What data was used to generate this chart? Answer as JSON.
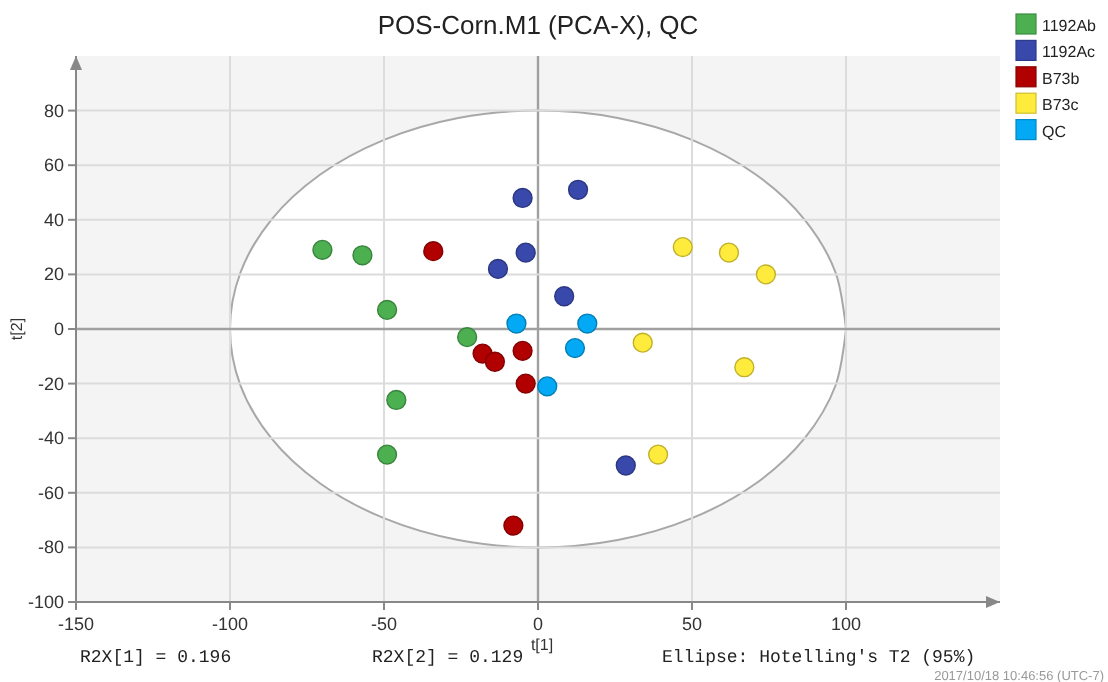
{
  "chart_data": {
    "type": "scatter",
    "title": "POS-Corn.M1 (PCA-X), QC",
    "xlabel": "t[1]",
    "ylabel": "t[2]",
    "xlim": [
      -150,
      150
    ],
    "ylim": [
      -100,
      100
    ],
    "xticks": [
      -150,
      -100,
      -50,
      0,
      50,
      100
    ],
    "yticks": [
      -100,
      -80,
      -60,
      -40,
      -20,
      0,
      20,
      40,
      60,
      80
    ],
    "grid": true,
    "legend": "top right",
    "marker": "circle",
    "annotations": [
      "R2X[1] = 0.196",
      "R2X[2] = 0.129",
      "Ellipse: Hotelling's T2 (95%)",
      "2017/10/18 10:46:56 (UTC-7)"
    ],
    "series": [
      {
        "type": "area",
        "color": "#a8a8a8",
        "marker": "none",
        "x": [
          100,
          96.6,
          86.6,
          70.7,
          50,
          25.9,
          0,
          -25.9,
          -50,
          -70.7,
          -86.6,
          -96.6,
          -100,
          -96.6,
          -86.6,
          -70.7,
          -50,
          -25.9,
          0,
          25.9,
          50,
          70.7,
          86.6,
          96.6,
          100
        ],
        "values": [
          0,
          20.7,
          40,
          56.6,
          69.3,
          77.3,
          80,
          77.3,
          69.3,
          56.6,
          40,
          20.7,
          0,
          -20.7,
          -40,
          -56.6,
          -69.3,
          -77.3,
          -80,
          -77.3,
          -69.3,
          -56.6,
          -40,
          -20.7,
          0
        ]
      },
      {
        "name": "1192Ab",
        "color": "#4caf50",
        "x": [
          -70,
          -57,
          -49,
          -23,
          -46,
          -49
        ],
        "values": [
          29,
          27,
          7,
          -3,
          -26,
          -46
        ]
      },
      {
        "name": "1192Ac",
        "color": "#3949ab",
        "x": [
          -5,
          -4,
          -13,
          13,
          8.5,
          28.5
        ],
        "values": [
          48,
          28,
          22,
          51,
          12,
          -50
        ]
      },
      {
        "name": "B73b",
        "color": "#b00000",
        "x": [
          -34,
          -18,
          -14,
          -5,
          -4,
          -8
        ],
        "values": [
          28.5,
          -9,
          -12,
          -8,
          -20,
          -72
        ]
      },
      {
        "name": "B73c",
        "color": "#ffeb3b",
        "x": [
          47,
          62,
          74,
          34,
          67,
          39
        ],
        "values": [
          30,
          28,
          20,
          -5,
          -14,
          -46
        ]
      },
      {
        "name": "QC",
        "color": "#03a9f4",
        "x": [
          -7,
          16,
          12,
          3
        ],
        "values": [
          2,
          2,
          -7,
          -21
        ]
      }
    ]
  }
}
